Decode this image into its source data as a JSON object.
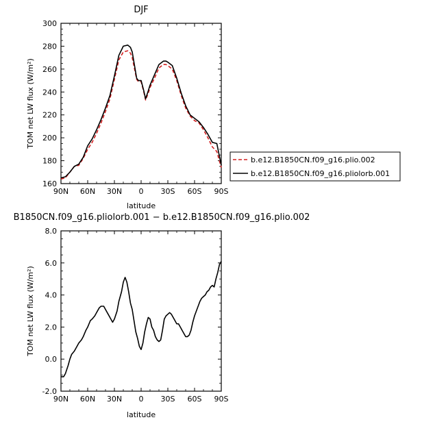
{
  "chart_data": [
    {
      "type": "line",
      "title": "DJF",
      "xlabel": "latitude",
      "ylabel": "TOM net LW flux (W/m²)",
      "xlim": [
        90,
        -90
      ],
      "ylim": [
        160,
        300
      ],
      "xticks": [
        90,
        60,
        30,
        0,
        -30,
        -60,
        -90
      ],
      "xtick_labels": [
        "90N",
        "60N",
        "30N",
        "0",
        "30S",
        "60S",
        "90S"
      ],
      "yticks": [
        160,
        180,
        200,
        220,
        240,
        260,
        280,
        300
      ],
      "ytick_labels": [
        "160",
        "180",
        "200",
        "220",
        "240",
        "260",
        "280",
        "300"
      ],
      "legend_position": "right",
      "series": [
        {
          "name": "b.e12.B1850CN.f09_g16.plio.002",
          "color": "#d21e1e",
          "dash": "dashed",
          "x": [
            90,
            85,
            80,
            75,
            70,
            65,
            60,
            55,
            50,
            45,
            40,
            35,
            30,
            25,
            20,
            15,
            12,
            10,
            5,
            3,
            0,
            -3,
            -5,
            -8,
            -10,
            -15,
            -20,
            -25,
            -28,
            -30,
            -35,
            -40,
            -45,
            -50,
            -55,
            -60,
            -65,
            -70,
            -75,
            -80,
            -85,
            -90
          ],
          "y": [
            164,
            165,
            170,
            175,
            176,
            182,
            190,
            196,
            204,
            213,
            223,
            234,
            251,
            268,
            275,
            276,
            274,
            270,
            251,
            249,
            249,
            240,
            233,
            239,
            244,
            252,
            261,
            264,
            264,
            263,
            260,
            250,
            237,
            226,
            219,
            215,
            213,
            207,
            200,
            192,
            188,
            174
          ]
        },
        {
          "name": "b.e12.B1850CN.f09_g16.pliolorb.001",
          "color": "#000000",
          "dash": "solid",
          "x": [
            90,
            85,
            80,
            75,
            70,
            65,
            60,
            55,
            50,
            45,
            40,
            35,
            30,
            25,
            20,
            15,
            12,
            10,
            5,
            3,
            0,
            -3,
            -5,
            -8,
            -10,
            -15,
            -20,
            -25,
            -28,
            -30,
            -35,
            -40,
            -45,
            -50,
            -55,
            -60,
            -65,
            -70,
            -75,
            -80,
            -85,
            -90
          ],
          "y": [
            165,
            166,
            170,
            175,
            177,
            183,
            193,
            199,
            207,
            216,
            226,
            237,
            254,
            272,
            280,
            281,
            279,
            275,
            252,
            250,
            250,
            241,
            234,
            241,
            246,
            255,
            264,
            267,
            267,
            266,
            263,
            252,
            239,
            228,
            220,
            217,
            214,
            209,
            203,
            196,
            195,
            176
          ]
        }
      ]
    },
    {
      "type": "line",
      "title": "B1850CN.f09_g16.pliolorb.001 − b.e12.B1850CN.f09_g16.plio.002",
      "xlabel": "latitude",
      "ylabel": "TOM net LW flux (W/m²)",
      "xlim": [
        90,
        -90
      ],
      "ylim": [
        -2,
        8
      ],
      "xticks": [
        90,
        60,
        30,
        0,
        -30,
        -60,
        -90
      ],
      "xtick_labels": [
        "90N",
        "60N",
        "30N",
        "0",
        "30S",
        "60S",
        "90S"
      ],
      "yticks": [
        -2,
        0,
        2,
        4,
        6,
        8
      ],
      "ytick_labels": [
        "-2.0",
        "0.0",
        "2.0",
        "4.0",
        "6.0",
        "8.0"
      ],
      "series": [
        {
          "color": "#000000",
          "dash": "solid",
          "x": [
            90,
            87,
            85,
            82,
            80,
            78,
            75,
            72,
            70,
            67,
            65,
            62,
            60,
            57,
            55,
            52,
            50,
            47,
            45,
            42,
            40,
            37,
            35,
            32,
            30,
            27,
            25,
            22,
            20,
            18,
            16,
            14,
            12,
            10,
            8,
            6,
            4,
            2,
            0,
            -2,
            -4,
            -6,
            -8,
            -10,
            -12,
            -14,
            -16,
            -18,
            -20,
            -22,
            -24,
            -26,
            -28,
            -30,
            -32,
            -34,
            -36,
            -38,
            -40,
            -42,
            -44,
            -46,
            -48,
            -50,
            -52,
            -54,
            -56,
            -58,
            -60,
            -62,
            -64,
            -66,
            -68,
            -70,
            -72,
            -74,
            -76,
            -78,
            -80,
            -82,
            -84,
            -86,
            -88,
            -90
          ],
          "y": [
            -1.1,
            -1.1,
            -0.9,
            -0.4,
            0.0,
            0.3,
            0.5,
            0.8,
            1.0,
            1.2,
            1.4,
            1.8,
            2.0,
            2.4,
            2.5,
            2.7,
            2.9,
            3.2,
            3.3,
            3.3,
            3.1,
            2.8,
            2.6,
            2.3,
            2.5,
            3.0,
            3.6,
            4.2,
            4.8,
            5.1,
            4.8,
            4.2,
            3.5,
            3.1,
            2.4,
            1.7,
            1.3,
            0.8,
            0.6,
            1.0,
            1.7,
            2.2,
            2.6,
            2.5,
            2.0,
            1.8,
            1.4,
            1.2,
            1.1,
            1.2,
            1.8,
            2.5,
            2.7,
            2.8,
            2.9,
            2.8,
            2.6,
            2.4,
            2.2,
            2.2,
            2.0,
            1.8,
            1.6,
            1.4,
            1.4,
            1.5,
            1.8,
            2.3,
            2.7,
            3.0,
            3.3,
            3.6,
            3.8,
            3.9,
            4.0,
            4.2,
            4.3,
            4.5,
            4.6,
            4.5,
            5.0,
            5.4,
            5.9,
            6.1
          ]
        }
      ]
    }
  ]
}
